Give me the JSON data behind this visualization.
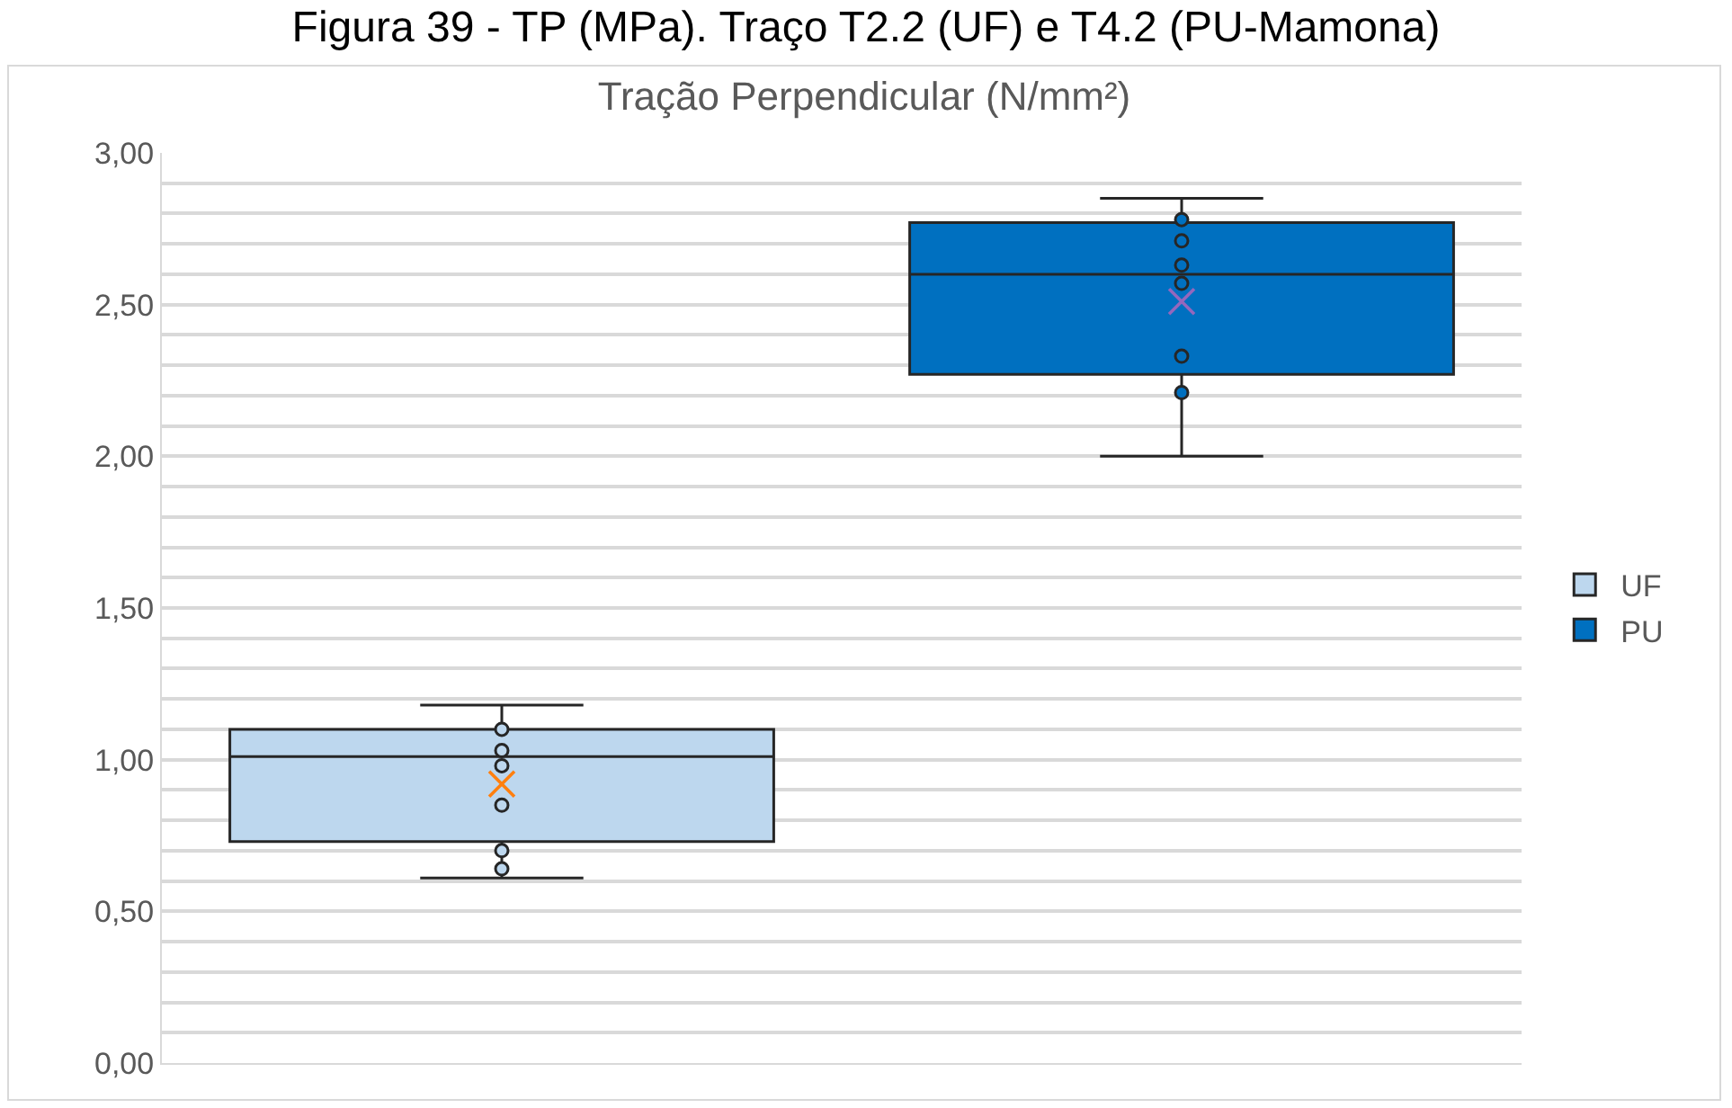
{
  "chart_data": {
    "type": "box",
    "title": "Figura 39 - TP (MPa). Traço T2.2 (UF) e T4.2 (PU-Mamona)",
    "subtitle": "Tração Perpendicular (N/mm²)",
    "categories": [
      null
    ],
    "series": [
      {
        "name": "UF",
        "color": "#bdd7ee",
        "boxes": [
          {
            "low": 0.61,
            "q1": 0.73,
            "median": 1.01,
            "q3": 1.1,
            "high": 1.18,
            "mean": 0.92,
            "outliers": [
              1.1,
              1.03,
              0.98,
              0.85,
              0.7,
              0.64
            ]
          }
        ]
      },
      {
        "name": "PU",
        "color": "#0070c0",
        "boxes": [
          {
            "low": 2.0,
            "q1": 2.27,
            "median": 2.6,
            "q3": 2.77,
            "high": 2.85,
            "mean": 2.51,
            "outliers": [
              2.78,
              2.71,
              2.63,
              2.57,
              2.33,
              2.21
            ]
          }
        ]
      }
    ],
    "ylim": [
      0,
      3
    ],
    "yticks": [
      {
        "value": 0,
        "label": "0,00"
      },
      {
        "value": 0.1,
        "label": null
      },
      {
        "value": 0.2,
        "label": null
      },
      {
        "value": 0.3,
        "label": null
      },
      {
        "value": 0.4,
        "label": null
      },
      {
        "value": 0.5,
        "label": "0,50"
      },
      {
        "value": 0.6,
        "label": null
      },
      {
        "value": 0.7,
        "label": null
      },
      {
        "value": 0.8,
        "label": null
      },
      {
        "value": 0.9,
        "label": null
      },
      {
        "value": 1,
        "label": "1,00"
      },
      {
        "value": 1.1,
        "label": null
      },
      {
        "value": 1.2,
        "label": null
      },
      {
        "value": 1.3,
        "label": null
      },
      {
        "value": 1.4,
        "label": null
      },
      {
        "value": 1.5,
        "label": "1,50"
      },
      {
        "value": 1.6,
        "label": null
      },
      {
        "value": 1.7,
        "label": null
      },
      {
        "value": 1.8,
        "label": null
      },
      {
        "value": 1.9,
        "label": null
      },
      {
        "value": 2,
        "label": "2,00"
      },
      {
        "value": 2.1,
        "label": null
      },
      {
        "value": 2.2,
        "label": null
      },
      {
        "value": 2.3,
        "label": null
      },
      {
        "value": 2.4,
        "label": null
      },
      {
        "value": 2.5,
        "label": "2,50"
      },
      {
        "value": 2.6,
        "label": null
      },
      {
        "value": 2.7,
        "label": null
      },
      {
        "value": 2.8,
        "label": null
      },
      {
        "value": 2.9,
        "label": null
      },
      {
        "value": 3,
        "label": "3,00"
      }
    ],
    "grid": "y",
    "legend": "right",
    "marker": "circle"
  }
}
